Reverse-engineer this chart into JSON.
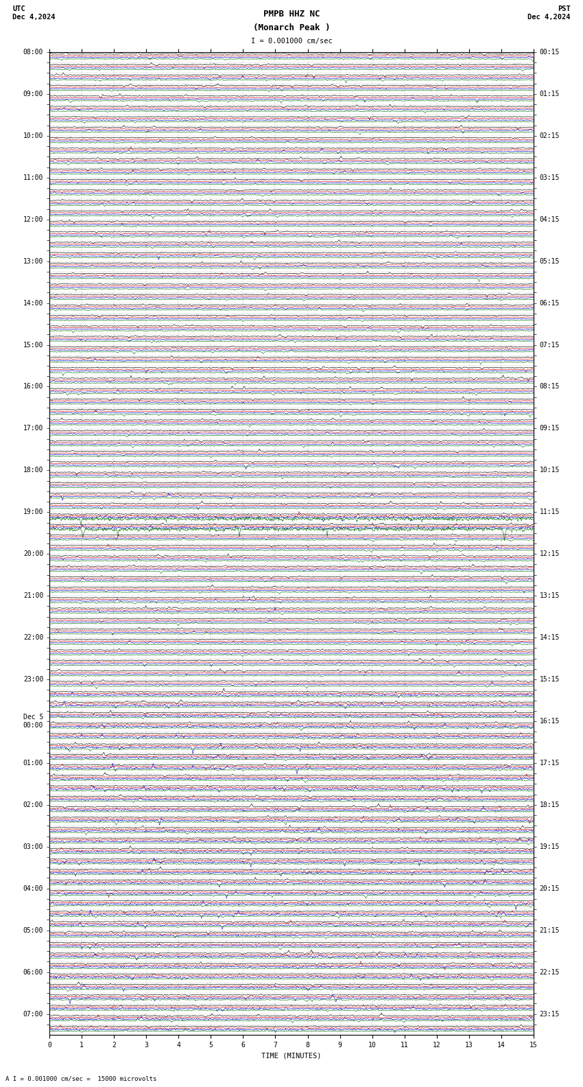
{
  "title_line1": "PMPB HHZ NC",
  "title_line2": "(Monarch Peak )",
  "scale_text": "I = 0.001000 cm/sec",
  "footer_text": "A I = 0.001000 cm/sec =  15000 microvolts",
  "utc_label": "UTC",
  "utc_date": "Dec 4,2024",
  "pst_label": "PST",
  "pst_date": "Dec 4,2024",
  "xlabel": "TIME (MINUTES)",
  "xlim": [
    0,
    15
  ],
  "xticks": [
    0,
    1,
    2,
    3,
    4,
    5,
    6,
    7,
    8,
    9,
    10,
    11,
    12,
    13,
    14,
    15
  ],
  "fig_width": 8.5,
  "fig_height": 15.84,
  "bg_color": "#ffffff",
  "trace_colors": [
    "#000000",
    "#cc0000",
    "#0000cc",
    "#007700"
  ],
  "grid_color": "#aaaaaa",
  "utc_times": [
    "08:00",
    "",
    "",
    "",
    "09:00",
    "",
    "",
    "",
    "10:00",
    "",
    "",
    "",
    "11:00",
    "",
    "",
    "",
    "12:00",
    "",
    "",
    "",
    "13:00",
    "",
    "",
    "",
    "14:00",
    "",
    "",
    "",
    "15:00",
    "",
    "",
    "",
    "16:00",
    "",
    "",
    "",
    "17:00",
    "",
    "",
    "",
    "18:00",
    "",
    "",
    "",
    "19:00",
    "",
    "",
    "",
    "20:00",
    "",
    "",
    "",
    "21:00",
    "",
    "",
    "",
    "22:00",
    "",
    "",
    "",
    "23:00",
    "",
    "",
    "",
    "Dec 5\n00:00",
    "",
    "",
    "",
    "01:00",
    "",
    "",
    "",
    "02:00",
    "",
    "",
    "",
    "03:00",
    "",
    "",
    "",
    "04:00",
    "",
    "",
    "",
    "05:00",
    "",
    "",
    "",
    "06:00",
    "",
    "",
    "",
    "07:00",
    ""
  ],
  "pst_times": [
    "00:15",
    "",
    "",
    "",
    "01:15",
    "",
    "",
    "",
    "02:15",
    "",
    "",
    "",
    "03:15",
    "",
    "",
    "",
    "04:15",
    "",
    "",
    "",
    "05:15",
    "",
    "",
    "",
    "06:15",
    "",
    "",
    "",
    "07:15",
    "",
    "",
    "",
    "08:15",
    "",
    "",
    "",
    "09:15",
    "",
    "",
    "",
    "10:15",
    "",
    "",
    "",
    "11:15",
    "",
    "",
    "",
    "12:15",
    "",
    "",
    "",
    "13:15",
    "",
    "",
    "",
    "14:15",
    "",
    "",
    "",
    "15:15",
    "",
    "",
    "",
    "16:15",
    "",
    "",
    "",
    "17:15",
    "",
    "",
    "",
    "18:15",
    "",
    "",
    "",
    "19:15",
    "",
    "",
    "",
    "20:15",
    "",
    "",
    "",
    "21:15",
    "",
    "",
    "",
    "22:15",
    "",
    "",
    "",
    "23:15",
    ""
  ],
  "n_rows": 94,
  "title_fontsize": 9,
  "label_fontsize": 7.5,
  "tick_fontsize": 7.0
}
